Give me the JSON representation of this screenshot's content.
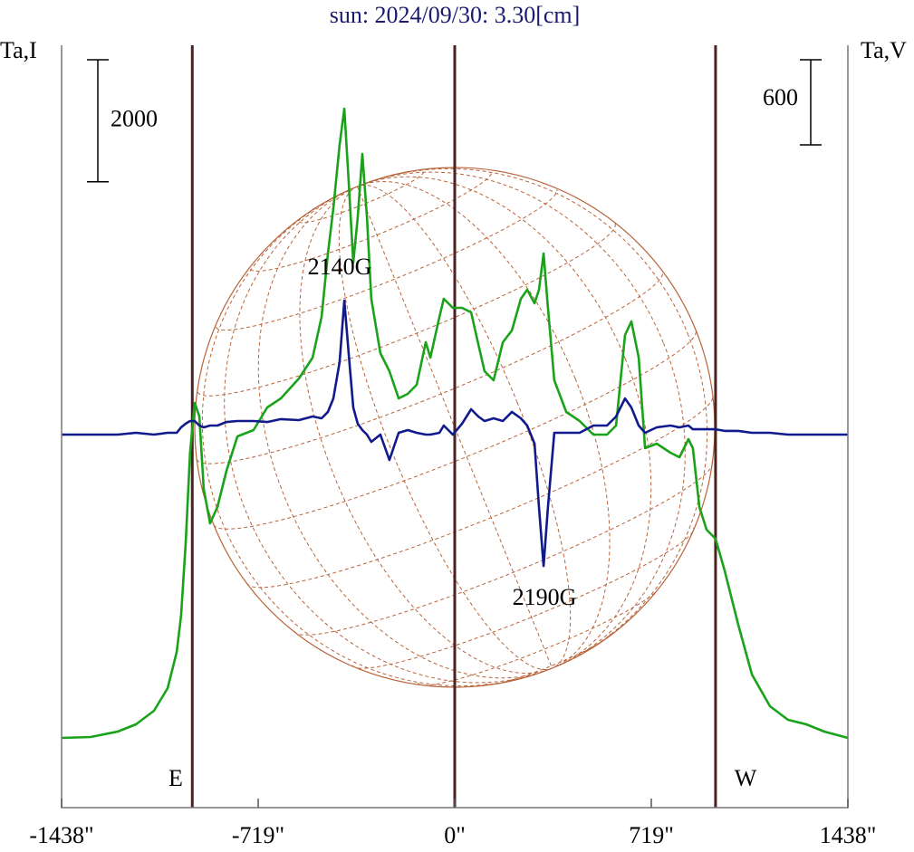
{
  "chart_data": {
    "type": "line",
    "title": "sun: 2024/09/30: 3.30[cm]",
    "ylabel": "Ta,I",
    "y2label": "Ta,V",
    "x": [
      -1438,
      -1332,
      -1233,
      -1166,
      -1100,
      -1050,
      -1017,
      -1001,
      -984,
      -968,
      -951,
      -934,
      -918,
      -895,
      -868,
      -835,
      -795,
      -736,
      -686,
      -636,
      -570,
      -520,
      -487,
      -464,
      -444,
      -421,
      -404,
      -388,
      -371,
      -355,
      -338,
      -321,
      -305,
      -272,
      -239,
      -205,
      -172,
      -139,
      -106,
      -89,
      -56,
      -40,
      -7,
      27,
      60,
      86,
      109,
      142,
      176,
      209,
      242,
      265,
      292,
      308,
      325,
      341,
      364,
      408,
      457,
      507,
      557,
      590,
      623,
      646,
      673,
      696,
      739,
      789,
      822,
      855,
      871,
      895,
      921,
      954,
      987,
      1037,
      1087,
      1153,
      1219,
      1286,
      1352,
      1438
    ],
    "series": [
      {
        "color": "#1aa31a",
        "values": [
          1143,
          1158,
          1247,
          1366,
          1589,
          1960,
          2554,
          3147,
          4335,
          5820,
          6636,
          6413,
          5226,
          4662,
          4929,
          5523,
          6087,
          6191,
          6562,
          6710,
          7037,
          7378,
          8047,
          9086,
          9828,
          10867,
          11461,
          10273,
          8937,
          9680,
          10719,
          9680,
          8343,
          7453,
          7156,
          6710,
          6785,
          6933,
          7631,
          7378,
          8047,
          8343,
          8195,
          8195,
          8121,
          7601,
          7156,
          7007,
          7631,
          7824,
          8343,
          8492,
          8269,
          8492,
          9086,
          8195,
          7007,
          6488,
          6339,
          6117,
          6117,
          6265,
          7750,
          7972,
          7378,
          5894,
          5968,
          5820,
          5745,
          6042,
          5894,
          4929,
          4558,
          4409,
          3890,
          2999,
          2182,
          1663,
          1440,
          1366,
          1247,
          1143
        ]
      },
      {
        "color": "#101a8c",
        "axis": "y2",
        "values": [
          0,
          0,
          0,
          13,
          0,
          13,
          13,
          51,
          77,
          96,
          96,
          64,
          51,
          64,
          64,
          89,
          96,
          96,
          89,
          109,
          102,
          128,
          115,
          160,
          255,
          511,
          945,
          574,
          191,
          77,
          32,
          0,
          -51,
          0,
          -179,
          13,
          32,
          13,
          0,
          0,
          13,
          64,
          0,
          77,
          179,
          128,
          96,
          115,
          96,
          160,
          115,
          64,
          -64,
          -511,
          -926,
          -511,
          13,
          13,
          13,
          64,
          64,
          128,
          255,
          191,
          64,
          13,
          51,
          64,
          51,
          64,
          38,
          38,
          38,
          38,
          26,
          26,
          13,
          13,
          0,
          0,
          0,
          0
        ]
      }
    ],
    "xlim": [
      -1438,
      1438
    ],
    "xticks": [
      {
        "value": -1438,
        "label": "-1438\""
      },
      {
        "value": -719,
        "label": "-719\""
      },
      {
        "value": 0,
        "label": "0\""
      },
      {
        "value": 719,
        "label": "719\""
      },
      {
        "value": 1438,
        "label": "1438\""
      }
    ],
    "ylim": [
      0,
      12500
    ],
    "y2lim": [
      -2630,
      2745
    ],
    "scale_bars": [
      {
        "axis": "y",
        "value": 2000
      },
      {
        "axis": "y2",
        "value": 600
      }
    ],
    "limb_lines": [
      -960,
      0,
      954
    ],
    "limb_color": "#4a2222",
    "annotations": [
      "2140G",
      "2190G",
      "E",
      "W"
    ]
  }
}
